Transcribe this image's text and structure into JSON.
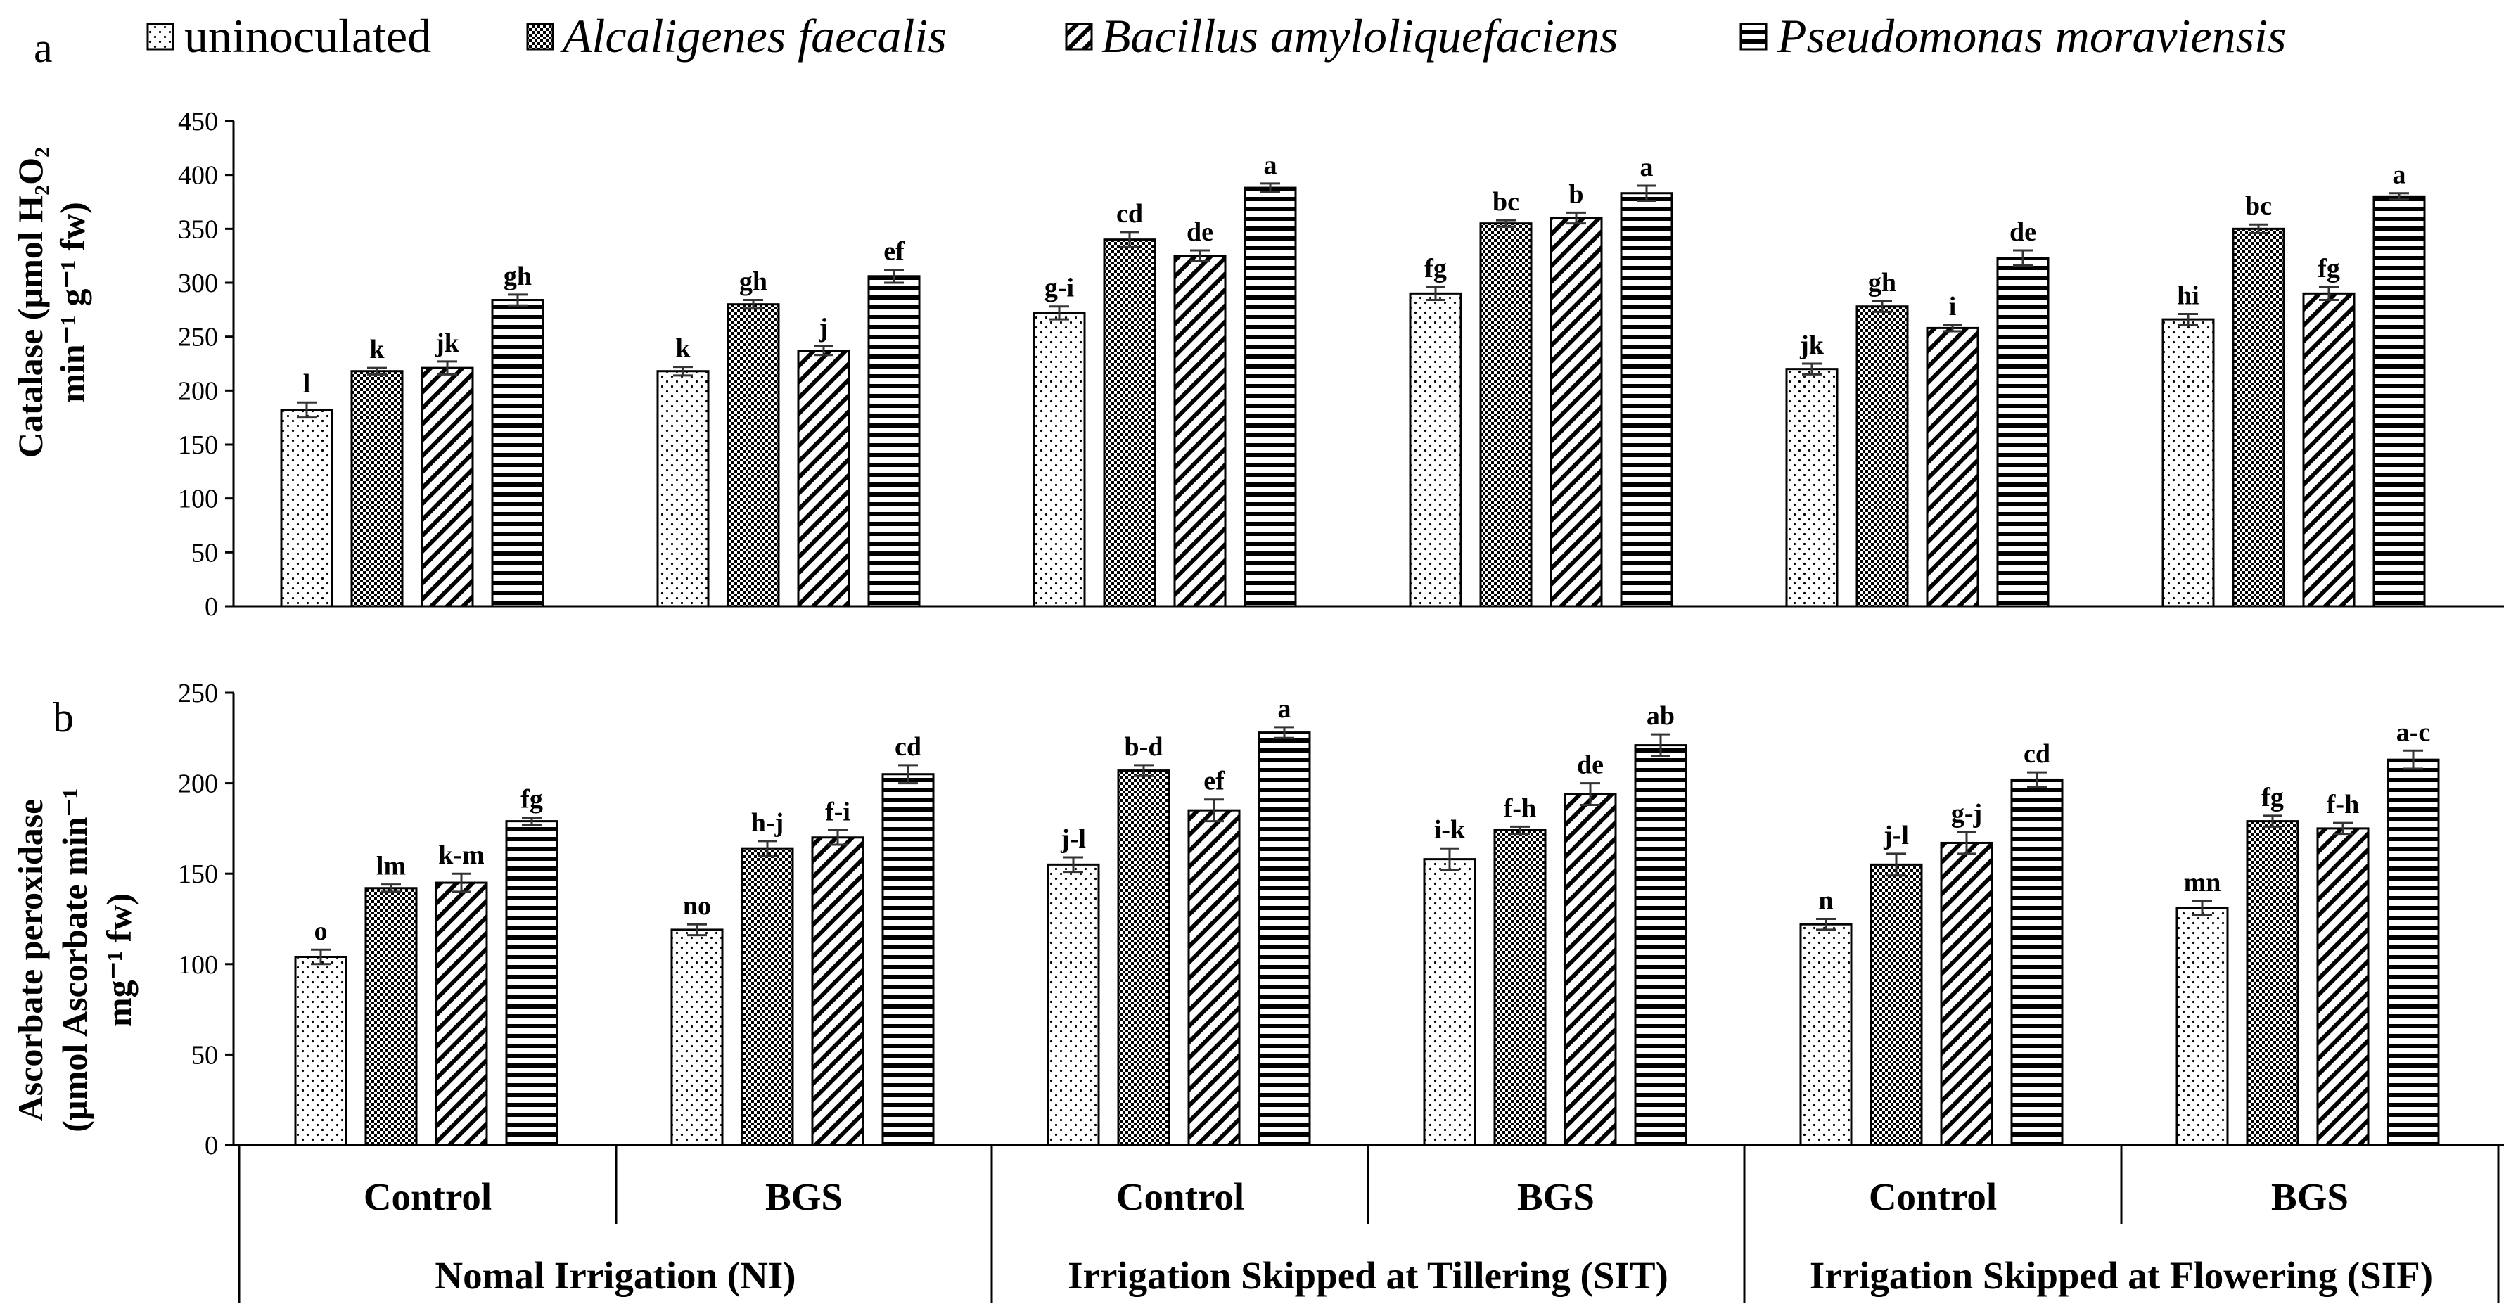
{
  "legend": [
    {
      "name": "uninoculated",
      "pattern": "dots",
      "italic": false
    },
    {
      "name": "Alcaligenes faecalis",
      "pattern": "crosshatch",
      "italic": true
    },
    {
      "name": "Bacillus amyloliquefaciens",
      "pattern": "diagonal",
      "italic": true
    },
    {
      "name": "Pseudomonas moraviensis",
      "pattern": "horizontal",
      "italic": true
    }
  ],
  "x_groups": {
    "main": [
      "Nomal Irrigation (NI)",
      "Irrigation Skipped at Tillering (SIT)",
      "Irrigation Skipped at Flowering (SIF)"
    ],
    "sub": [
      "Control",
      "BGS",
      "Control",
      "BGS",
      "Control",
      "BGS"
    ]
  },
  "chart_data": [
    {
      "type": "bar",
      "panel_label": "a",
      "ylabel_lines": [
        "Catalase (µmol H₂O₂",
        "min⁻¹ g⁻¹ fw)"
      ],
      "ylim": [
        0,
        450
      ],
      "yticks": [
        0,
        50,
        100,
        150,
        200,
        250,
        300,
        350,
        400,
        450
      ],
      "categories": [
        "NI Control",
        "NI BGS",
        "SIT Control",
        "SIT BGS",
        "SIF Control",
        "SIF BGS"
      ],
      "series": [
        {
          "name": "uninoculated",
          "values": [
            182,
            218,
            272,
            290,
            220,
            266
          ],
          "errors": [
            7,
            4,
            6,
            6,
            5,
            5
          ],
          "letters": [
            "l",
            "k",
            "g-i",
            "fg",
            "jk",
            "hi"
          ]
        },
        {
          "name": "Alcaligenes faecalis",
          "values": [
            218,
            280,
            340,
            355,
            278,
            350
          ],
          "errors": [
            3,
            4,
            7,
            3,
            5,
            4
          ],
          "letters": [
            "k",
            "gh",
            "cd",
            "bc",
            "gh",
            "bc"
          ]
        },
        {
          "name": "Bacillus amyloliquefaciens",
          "values": [
            221,
            237,
            325,
            360,
            258,
            290
          ],
          "errors": [
            6,
            4,
            5,
            5,
            3,
            6
          ],
          "letters": [
            "jk",
            "j",
            "de",
            "b",
            "i",
            "fg"
          ]
        },
        {
          "name": "Pseudomonas moraviensis",
          "values": [
            284,
            306,
            388,
            383,
            323,
            380
          ],
          "errors": [
            5,
            6,
            4,
            7,
            7,
            3
          ],
          "letters": [
            "gh",
            "ef",
            "a",
            "a",
            "de",
            "a"
          ]
        }
      ]
    },
    {
      "type": "bar",
      "panel_label": "b",
      "ylabel_lines": [
        "Ascorbate peroxidase",
        "(µmol Ascorbate min⁻¹",
        "mg⁻¹ fw)"
      ],
      "ylim": [
        0,
        250
      ],
      "yticks": [
        0,
        50,
        100,
        150,
        200,
        250
      ],
      "categories": [
        "NI Control",
        "NI BGS",
        "SIT Control",
        "SIT BGS",
        "SIF Control",
        "SIF BGS"
      ],
      "series": [
        {
          "name": "uninoculated",
          "values": [
            104,
            119,
            155,
            158,
            122,
            131
          ],
          "errors": [
            4,
            3,
            4,
            6,
            3,
            4
          ],
          "letters": [
            "o",
            "no",
            "j-l",
            "i-k",
            "n",
            "mn"
          ]
        },
        {
          "name": "Alcaligenes faecalis",
          "values": [
            142,
            164,
            207,
            174,
            155,
            179
          ],
          "errors": [
            2,
            4,
            3,
            2,
            6,
            3
          ],
          "letters": [
            "lm",
            "h-j",
            "b-d",
            "f-h",
            "j-l",
            "fg"
          ]
        },
        {
          "name": "Bacillus amyloliquefaciens",
          "values": [
            145,
            170,
            185,
            194,
            167,
            175
          ],
          "errors": [
            5,
            4,
            6,
            6,
            6,
            3
          ],
          "letters": [
            "k-m",
            "f-i",
            "ef",
            "de",
            "g-j",
            "f-h"
          ]
        },
        {
          "name": "Pseudomonas moraviensis",
          "values": [
            179,
            205,
            228,
            221,
            202,
            213
          ],
          "errors": [
            2,
            5,
            3,
            6,
            4,
            5
          ],
          "letters": [
            "fg",
            "cd",
            "a",
            "ab",
            "cd",
            "a-c"
          ]
        }
      ]
    }
  ]
}
